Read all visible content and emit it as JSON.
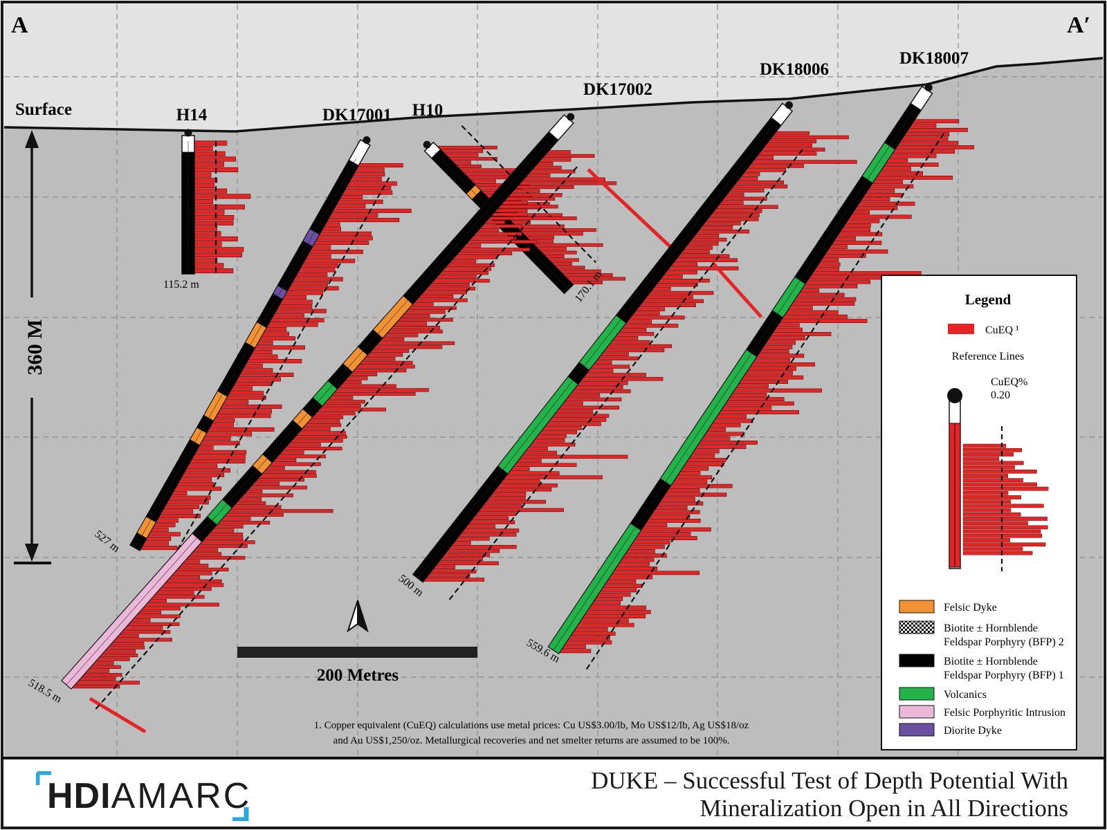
{
  "section": {
    "left_label": "A",
    "right_label": "A′",
    "surface_label": "Surface"
  },
  "scale": {
    "vertical_label": "360 M",
    "bar_label": "200 Metres"
  },
  "holes": [
    {
      "name": "H14",
      "depth_label": "115.2 m"
    },
    {
      "name": "DK17001",
      "depth_label": "527 m"
    },
    {
      "name": "H10",
      "depth_label": "170.1 m"
    },
    {
      "name": "DK17002",
      "depth_label": "518.5 m"
    },
    {
      "name": "DK18006",
      "depth_label": "500 m"
    },
    {
      "name": "DK18007",
      "depth_label": "559.6 m"
    }
  ],
  "legend": {
    "title": "Legend",
    "cueq_label": "CuEQ ¹",
    "reference_lines_label": "Reference Lines",
    "ref_value_label": "CuEQ%",
    "ref_value": "0.20",
    "units": [
      {
        "label": "Felsic Dyke",
        "color": "#f39233",
        "pattern": "solid"
      },
      {
        "label": "Biotite ± Hornblende",
        "label2": "Feldspar Porphyry (BFP) 2",
        "color": "#000000",
        "pattern": "checker"
      },
      {
        "label": "Biotite ± Hornblende",
        "label2": "Feldspar Porphyry (BFP) 1",
        "color": "#000000",
        "pattern": "solid"
      },
      {
        "label": "Volcanics",
        "color": "#24b24b",
        "pattern": "solid"
      },
      {
        "label": "Felsic Porphyritic Intrusion",
        "color": "#ecb8d9",
        "pattern": "solid"
      },
      {
        "label": "Diorite Dyke",
        "color": "#6b4fa2",
        "pattern": "solid"
      }
    ]
  },
  "footnote": {
    "line1": "1. Copper equivalent (CuEQ) calculations use metal prices: Cu US$3.00/lb, Mo US$12/lb, Ag US$18/oz",
    "line2": "and Au US$1,250/oz. Metallurgical recoveries and net smelter returns are assumed to be 100%."
  },
  "footer": {
    "logo_bold": "HDI",
    "logo_light": "AMARC",
    "title_line1": "DUKE – Successful Test of Depth Potential With",
    "title_line2": "Mineralization Open in All Directions"
  },
  "colors": {
    "cueq_red": "#e42526",
    "air": "#e3e3e3",
    "ground": "#bdbdbd",
    "felsic_dyke": "#f39233",
    "volcanics": "#24b24b",
    "felsic_porphyritic": "#ecb8d9",
    "diorite": "#6b4fa2",
    "logo_blue": "#29a8e0"
  }
}
